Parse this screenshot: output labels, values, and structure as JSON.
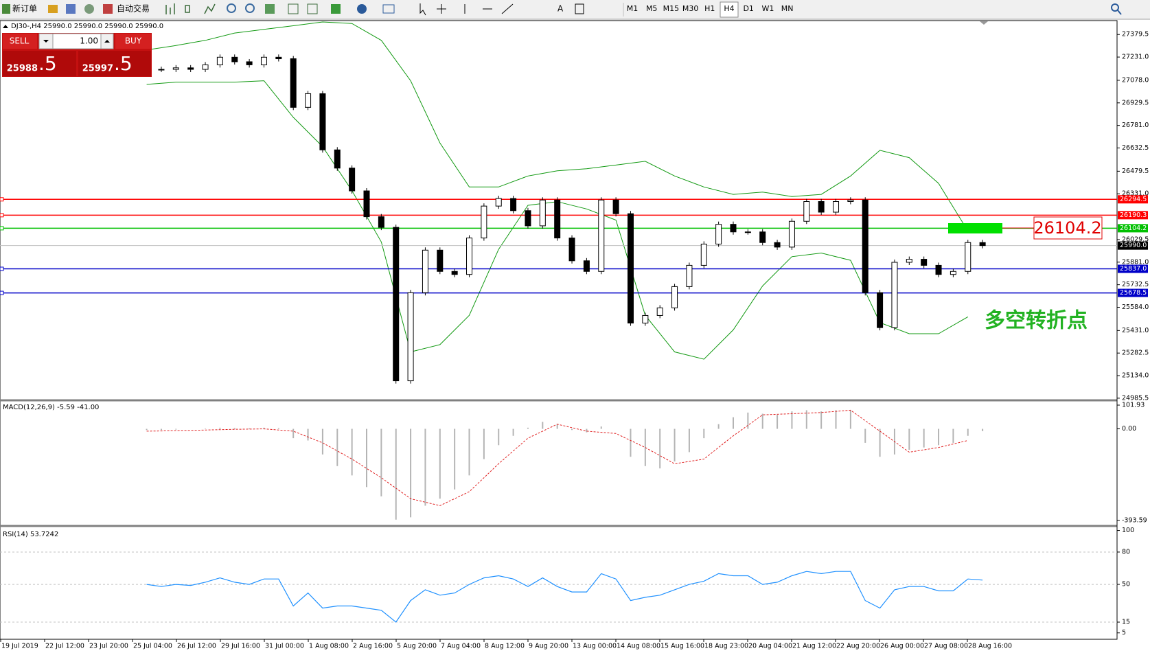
{
  "toolbar": {
    "new_order": "新订单",
    "auto_trading": "自动交易",
    "timeframes": [
      "M1",
      "M5",
      "M15",
      "M30",
      "H1",
      "H4",
      "D1",
      "W1",
      "MN"
    ],
    "active_timeframe": 5
  },
  "trade_panel": {
    "sell": "SELL",
    "buy": "BUY",
    "lots": "1.00",
    "bid_big": "25988",
    "bid_small": ".5",
    "ask_big": "25997",
    "ask_small": ".5"
  },
  "x_labels": [
    "19 Jul 2019",
    "22 Jul 12:00",
    "23 Jul 20:00",
    "25 Jul 04:00",
    "26 Jul 12:00",
    "29 Jul 16:00",
    "31 Jul 00:00",
    "1 Aug 08:00",
    "2 Aug 16:00",
    "5 Aug 20:00",
    "7 Aug 04:00",
    "8 Aug 12:00",
    "9 Aug 20:00",
    "13 Aug 00:00",
    "14 Aug 08:00",
    "15 Aug 16:00",
    "18 Aug 23:00",
    "20 Aug 04:00",
    "21 Aug 12:00",
    "22 Aug 20:00",
    "26 Aug 00:00",
    "27 Aug 08:00",
    "28 Aug 16:00"
  ],
  "chart_data": [
    {
      "type": "candlestick",
      "title": "DJ30-,H4  25990.0 25990.0 25990.0 25990.0",
      "ylim": [
        24976,
        27471
      ],
      "yticks": [
        27379.5,
        {
          "value": 27231,
          "label": "27231.0"
        },
        {
          "value": 27078,
          "label": "27078.0"
        },
        26929.5,
        {
          "value": 26781,
          "label": "26781.0"
        },
        26632.5,
        26479.5,
        {
          "value": 26331,
          "label": "26331.0"
        },
        26029.5,
        {
          "value": 25881,
          "label": "25881.0"
        },
        25732.5,
        {
          "value": 25584,
          "label": "25584.0"
        },
        {
          "value": 25431,
          "label": "25431.0"
        },
        25282.5,
        {
          "value": 25134,
          "label": "25134.0"
        },
        24985.5
      ],
      "values": [
        27150,
        27150,
        27160,
        27150,
        27180,
        27230,
        27200,
        27180,
        27230,
        27220,
        26900,
        26990,
        26620,
        26500,
        26350,
        26180,
        26110,
        25100,
        25680,
        25960,
        25820,
        25800,
        26040,
        26250,
        26300,
        26220,
        26120,
        26290,
        26040,
        25890,
        25820,
        26290,
        26200,
        25480,
        25530,
        25580,
        25720,
        25860,
        26000,
        26130,
        26080,
        26080,
        26010,
        25980,
        26150,
        26280,
        26210,
        26280,
        26290,
        25680,
        25450,
        25880,
        25900,
        25860,
        25800,
        25820,
        26010,
        25990
      ],
      "bands": {
        "color": "#119911",
        "upper": [
          27278,
          27307,
          27341,
          27389,
          27413,
          27437,
          27462,
          27452,
          27341,
          27075,
          26665,
          26376,
          26376,
          26448,
          26482,
          26496,
          26520,
          26545,
          26448,
          26376,
          26327,
          26342,
          26313,
          26327,
          26448,
          26617,
          26569,
          26400,
          26086
        ],
        "lower": [
          27051,
          27066,
          27066,
          27066,
          27075,
          26834,
          26641,
          26352,
          26014,
          25290,
          25338,
          25531,
          25965,
          26255,
          26279,
          26231,
          26158,
          25531,
          25290,
          25242,
          25435,
          25724,
          25917,
          25941,
          25893,
          25483,
          25410,
          25410,
          25521
        ]
      },
      "hlines": [
        {
          "value": 26294.5,
          "label": "26294.5",
          "color": "#ff0000"
        },
        {
          "value": 26190.3,
          "label": "26190.3",
          "color": "#ff0000"
        },
        {
          "value": 26104.2,
          "label": "26104.2",
          "color": "#00c000"
        },
        {
          "value": 25837,
          "label": "25837.0",
          "color": "#0000c8"
        },
        {
          "value": 25678.5,
          "label": "25678.5",
          "color": "#0000c8"
        }
      ],
      "current_price": {
        "value": 25990,
        "label": "25990.0"
      },
      "annotations": {
        "price_box": "26104.2",
        "note": "多空转折点"
      }
    },
    {
      "type": "macd",
      "title": "MACD(12,26,9) -5.59 -41.00",
      "ylim": [
        -393.59,
        101.93
      ],
      "yticks": [
        101.93,
        {
          "value": 0,
          "label": "0.00"
        },
        -393.59
      ],
      "histogram": {
        "color": "#b4b4b4",
        "values": [
          -5,
          -5,
          -3,
          0,
          2,
          5,
          4,
          3,
          5,
          4,
          -40,
          -50,
          -110,
          -160,
          -200,
          -250,
          -290,
          -390,
          -380,
          -330,
          -300,
          -260,
          -200,
          -130,
          -70,
          -30,
          5,
          30,
          20,
          -5,
          -15,
          10,
          0,
          -120,
          -160,
          -170,
          -140,
          -100,
          -40,
          20,
          50,
          70,
          65,
          60,
          75,
          80,
          75,
          80,
          80,
          -60,
          -120,
          -110,
          -90,
          -80,
          -70,
          -60,
          -30,
          -10
        ]
      },
      "signal": {
        "color": "#e02020",
        "values": [
          -10,
          -8,
          -5,
          -2,
          0,
          -10,
          -60,
          -130,
          -210,
          -300,
          -330,
          -270,
          -150,
          -40,
          20,
          -10,
          -20,
          -80,
          -150,
          -130,
          -30,
          60,
          65,
          70,
          80,
          -10,
          -100,
          -80,
          -50
        ]
      }
    },
    {
      "type": "line",
      "title": "RSI(14) 53.7242",
      "ylim": [
        1,
        101
      ],
      "yticks": [
        100,
        80,
        50,
        15,
        5
      ],
      "levels": [
        80,
        50,
        15
      ],
      "color": "#1e90ff",
      "values": [
        50,
        48,
        50,
        49,
        52,
        56,
        52,
        50,
        55,
        55,
        30,
        42,
        28,
        30,
        30,
        28,
        26,
        15,
        35,
        45,
        40,
        42,
        50,
        56,
        58,
        55,
        48,
        56,
        48,
        43,
        43,
        60,
        55,
        35,
        38,
        40,
        45,
        50,
        53,
        60,
        58,
        58,
        50,
        52,
        58,
        62,
        60,
        62,
        62,
        35,
        28,
        45,
        48,
        48,
        44,
        44,
        55,
        54
      ]
    }
  ]
}
